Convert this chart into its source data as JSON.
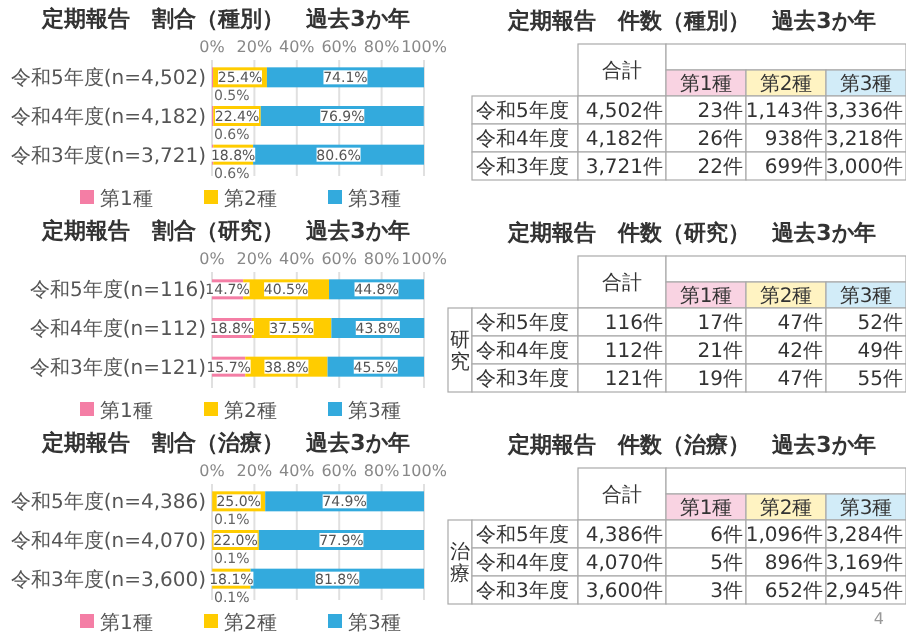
{
  "chart_data": [
    {
      "type": "bar",
      "orientation": "horizontal",
      "stacked": true,
      "title": "定期報告　割合（種別）　過去3か年",
      "categories": [
        "令和5年度(n=4,502)",
        "令和4年度(n=4,182)",
        "令和3年度(n=3,721)"
      ],
      "xlim": [
        0,
        100
      ],
      "xticks": [
        {
          "value": 0,
          "label": "0%"
        },
        {
          "value": 20,
          "label": "20%"
        },
        {
          "value": 40,
          "label": "40%"
        },
        {
          "value": 60,
          "label": "60%"
        },
        {
          "value": 80,
          "label": "80%"
        },
        {
          "value": 100,
          "label": "100%"
        }
      ],
      "grid": "x",
      "legend": "bottom",
      "series": [
        {
          "name": "第1種",
          "color": "#f47ea5",
          "values": [
            0.5,
            0.6,
            0.6
          ],
          "value_labels": [
            "0.5%",
            "0.6%",
            "0.6%"
          ]
        },
        {
          "name": "第2種",
          "color": "#ffcc00",
          "values": [
            25.4,
            22.4,
            18.8
          ],
          "value_labels": [
            "25.4%",
            "22.4%",
            "18.8%"
          ]
        },
        {
          "name": "第3種",
          "color": "#33aadd",
          "values": [
            74.1,
            76.9,
            80.6
          ],
          "value_labels": [
            "74.1%",
            "76.9%",
            "80.6%"
          ]
        }
      ]
    },
    {
      "type": "other",
      "title": "定期報告　件数（種別）　過去3か年",
      "categories": [
        "合計",
        "第1種",
        "第2種",
        "第3種"
      ],
      "colors": [
        "#ffffff",
        "#f9d3e2",
        "#fff3c2",
        "#d2ecf8"
      ],
      "y_categories": [
        "令和5年度",
        "令和4年度",
        "令和3年度"
      ],
      "cell_labels": [
        [
          "4,502件",
          "23件",
          "1,143件",
          "3,336件"
        ],
        [
          "4,182件",
          "26件",
          "938件",
          "3,218件"
        ],
        [
          "3,721件",
          "22件",
          "699件",
          "3,000件"
        ]
      ]
    },
    {
      "type": "bar",
      "orientation": "horizontal",
      "stacked": true,
      "title": "定期報告　割合（研究）　過去3か年",
      "categories": [
        "令和5年度(n=116)",
        "令和4年度(n=112)",
        "令和3年度(n=121)"
      ],
      "xlim": [
        0,
        100
      ],
      "xticks": [
        {
          "value": 0,
          "label": "0%"
        },
        {
          "value": 20,
          "label": "20%"
        },
        {
          "value": 40,
          "label": "40%"
        },
        {
          "value": 60,
          "label": "60%"
        },
        {
          "value": 80,
          "label": "80%"
        },
        {
          "value": 100,
          "label": "100%"
        }
      ],
      "grid": "x",
      "legend": "bottom",
      "series": [
        {
          "name": "第1種",
          "color": "#f47ea5",
          "values": [
            14.7,
            18.8,
            15.7
          ],
          "value_labels": [
            "14.7%",
            "18.8%",
            "15.7%"
          ]
        },
        {
          "name": "第2種",
          "color": "#ffcc00",
          "values": [
            40.5,
            37.5,
            38.8
          ],
          "value_labels": [
            "40.5%",
            "37.5%",
            "38.8%"
          ]
        },
        {
          "name": "第3種",
          "color": "#33aadd",
          "values": [
            44.8,
            43.8,
            45.5
          ],
          "value_labels": [
            "44.8%",
            "43.8%",
            "45.5%"
          ]
        }
      ]
    },
    {
      "type": "other",
      "title": "定期報告　件数（研究）　過去3か年",
      "ylabel": "研究",
      "categories": [
        "合計",
        "第1種",
        "第2種",
        "第3種"
      ],
      "colors": [
        "#ffffff",
        "#f9d3e2",
        "#fff3c2",
        "#d2ecf8"
      ],
      "y_categories": [
        "令和5年度",
        "令和4年度",
        "令和3年度"
      ],
      "cell_labels": [
        [
          "116件",
          "17件",
          "47件",
          "52件"
        ],
        [
          "112件",
          "21件",
          "42件",
          "49件"
        ],
        [
          "121件",
          "19件",
          "47件",
          "55件"
        ]
      ]
    },
    {
      "type": "bar",
      "orientation": "horizontal",
      "stacked": true,
      "title": "定期報告　割合（治療）　過去3か年",
      "categories": [
        "令和5年度(n=4,386)",
        "令和4年度(n=4,070)",
        "令和3年度(n=3,600)"
      ],
      "xlim": [
        0,
        100
      ],
      "xticks": [
        {
          "value": 0,
          "label": "0%"
        },
        {
          "value": 20,
          "label": "20%"
        },
        {
          "value": 40,
          "label": "40%"
        },
        {
          "value": 60,
          "label": "60%"
        },
        {
          "value": 80,
          "label": "80%"
        },
        {
          "value": 100,
          "label": "100%"
        }
      ],
      "grid": "x",
      "legend": "bottom",
      "series": [
        {
          "name": "第1種",
          "color": "#f47ea5",
          "values": [
            0.1,
            0.1,
            0.1
          ],
          "value_labels": [
            "0.1%",
            "0.1%",
            "0.1%"
          ]
        },
        {
          "name": "第2種",
          "color": "#ffcc00",
          "values": [
            25.0,
            22.0,
            18.1
          ],
          "value_labels": [
            "25.0%",
            "22.0%",
            "18.1%"
          ]
        },
        {
          "name": "第3種",
          "color": "#33aadd",
          "values": [
            74.9,
            77.9,
            81.8
          ],
          "value_labels": [
            "74.9%",
            "77.9%",
            "81.8%"
          ]
        }
      ]
    },
    {
      "type": "other",
      "title": "定期報告　件数（治療）　過去3か年",
      "ylabel": "治療",
      "annotations": [
        "4"
      ],
      "categories": [
        "合計",
        "第1種",
        "第2種",
        "第3種"
      ],
      "colors": [
        "#ffffff",
        "#f9d3e2",
        "#fff3c2",
        "#d2ecf8"
      ],
      "y_categories": [
        "令和5年度",
        "令和4年度",
        "令和3年度"
      ],
      "cell_labels": [
        [
          "4,386件",
          "6件",
          "1,096件",
          "3,284件"
        ],
        [
          "4,070件",
          "5件",
          "896件",
          "3,169件"
        ],
        [
          "3,600件",
          "3件",
          "652件",
          "2,945件"
        ]
      ]
    }
  ]
}
